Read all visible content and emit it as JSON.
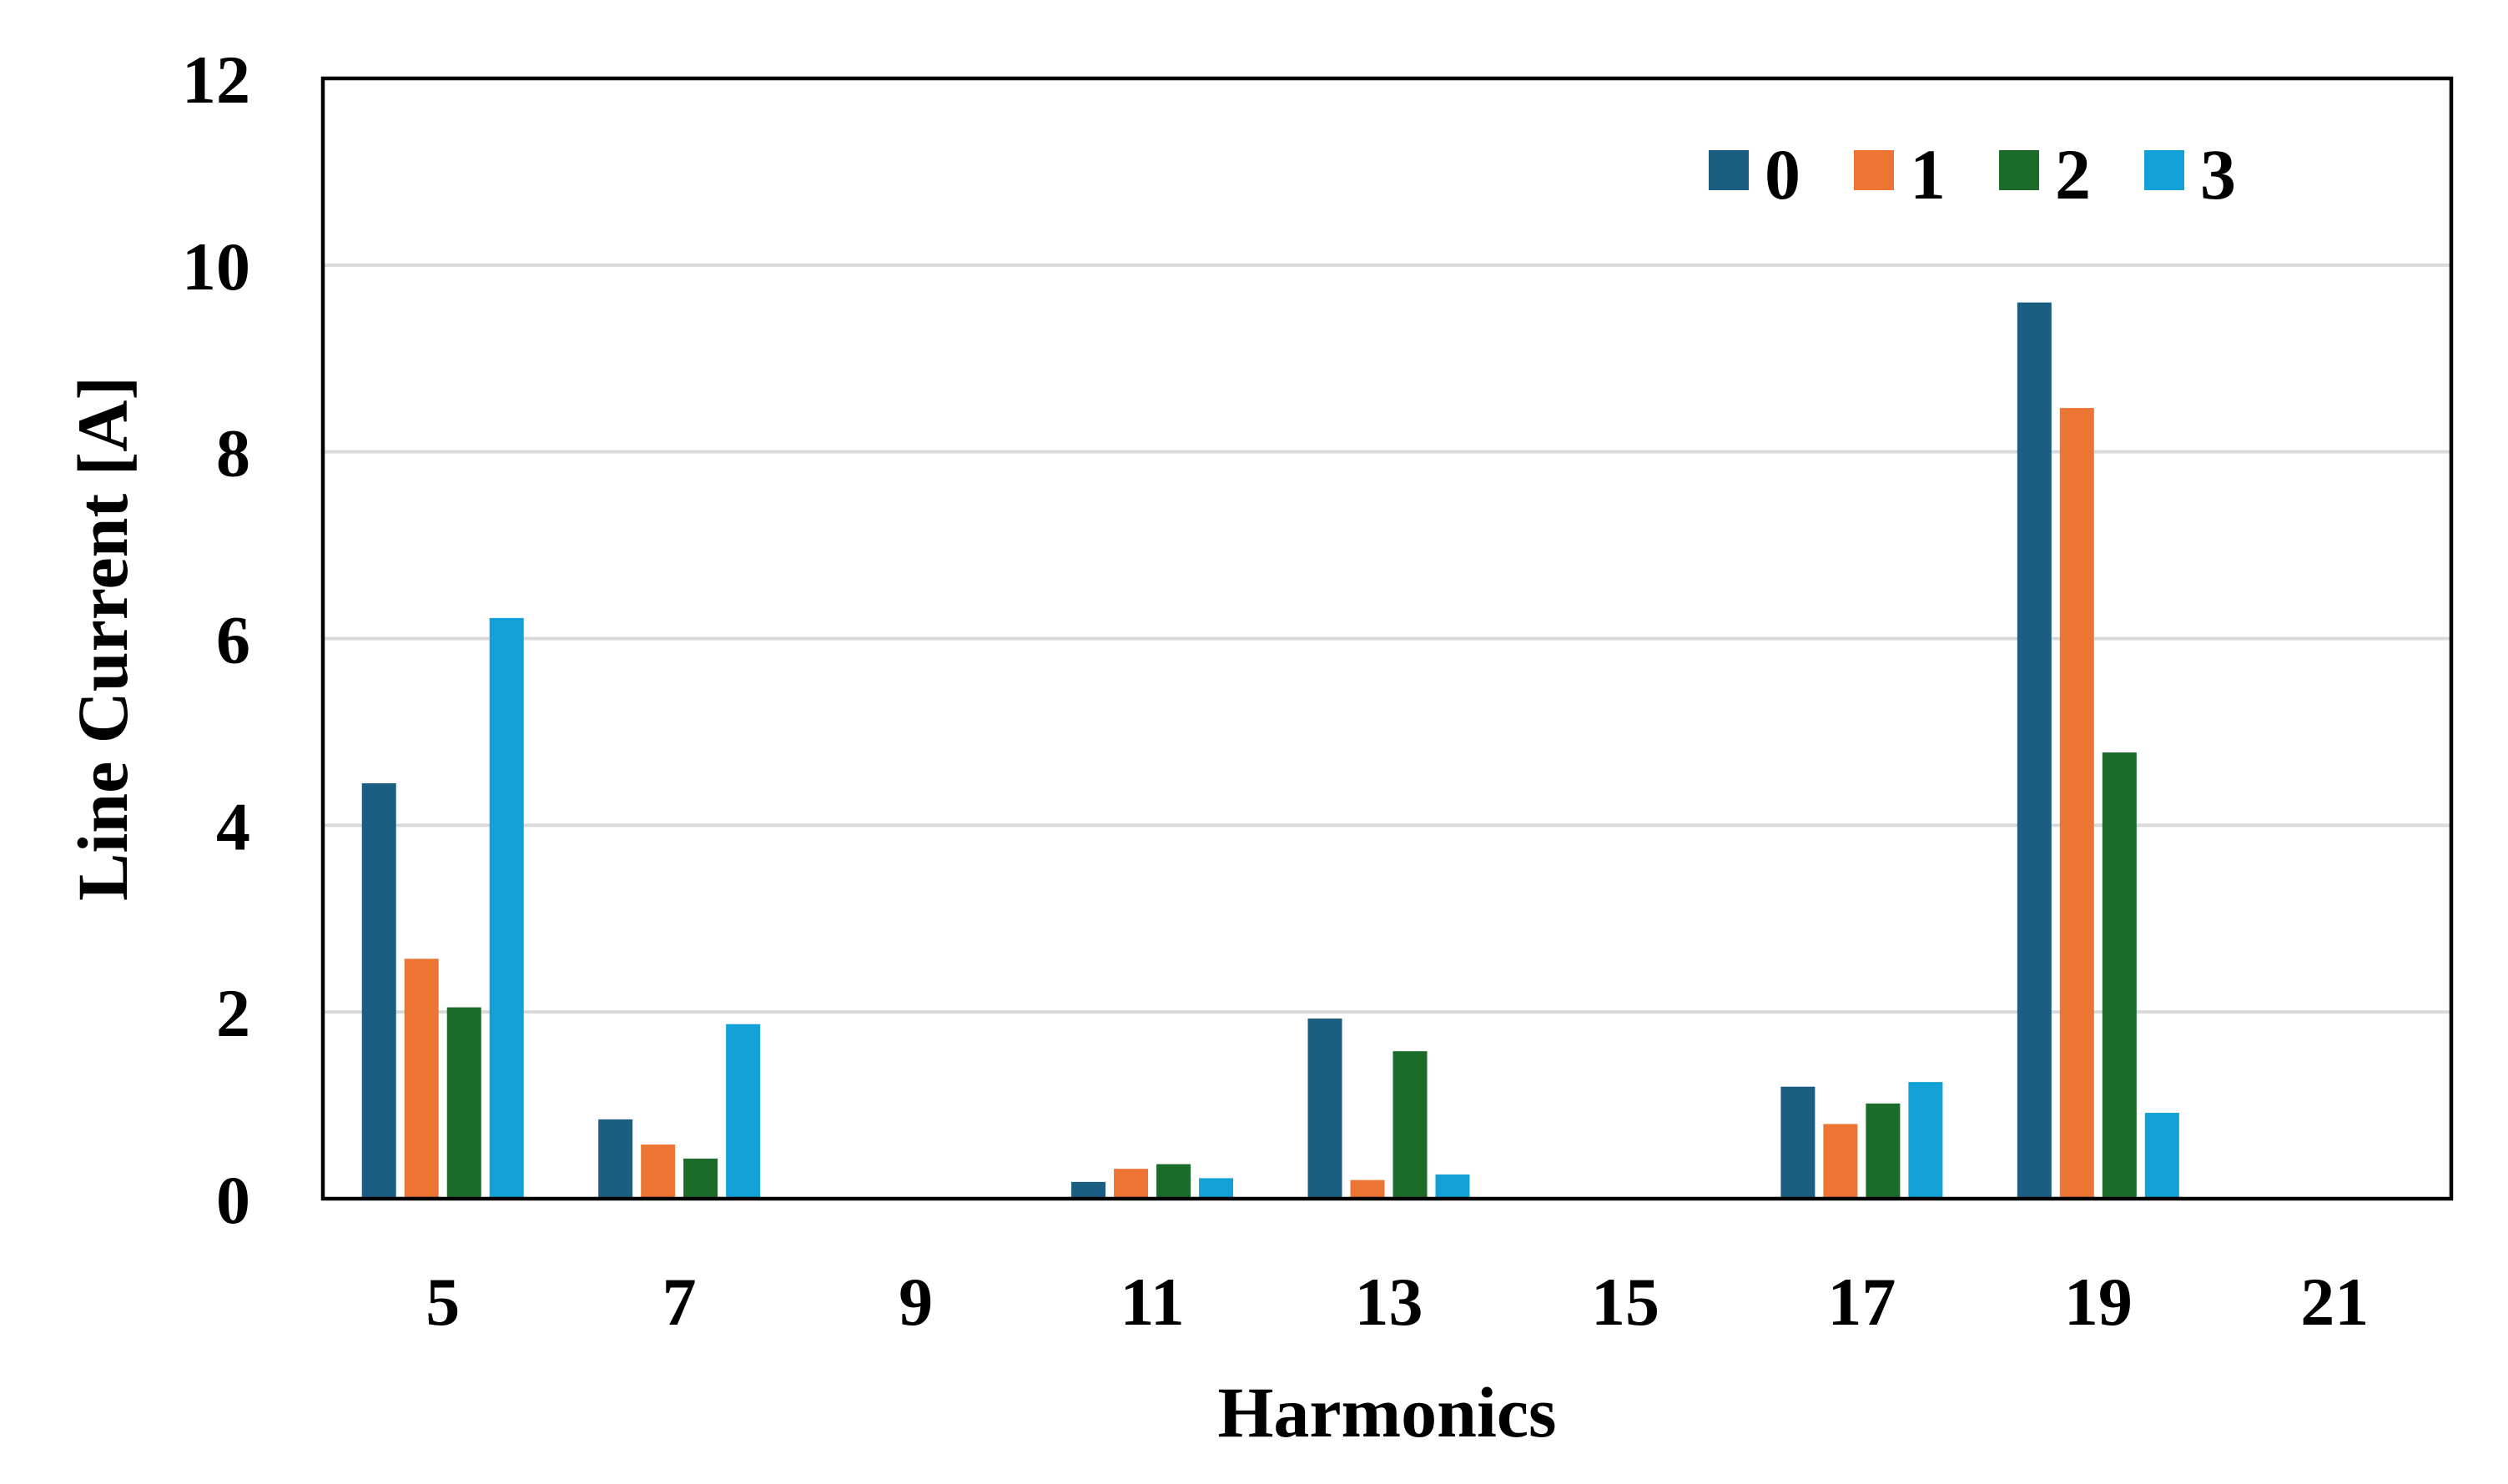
{
  "chart_data": {
    "type": "bar",
    "title": "",
    "xlabel": "Harmonics",
    "ylabel": "Line Current [A]",
    "categories": [
      "5",
      "7",
      "9",
      "11",
      "13",
      "15",
      "17",
      "19",
      "21"
    ],
    "ylim": [
      0,
      12
    ],
    "yticks": [
      "0",
      "2",
      "4",
      "6",
      "8",
      "10",
      "12"
    ],
    "grid": "horizontal",
    "legend_position": "top-right",
    "series": [
      {
        "name": "0",
        "color": "#1a5f82",
        "values": [
          4.45,
          0.85,
          0,
          0.18,
          1.93,
          0,
          1.2,
          9.6,
          0
        ]
      },
      {
        "name": "1",
        "color": "#ec7533",
        "values": [
          2.57,
          0.58,
          0,
          0.32,
          0.2,
          0,
          0.8,
          8.47,
          0
        ]
      },
      {
        "name": "2",
        "color": "#1b6b2a",
        "values": [
          2.05,
          0.43,
          0,
          0.37,
          1.58,
          0,
          1.02,
          4.78,
          0
        ]
      },
      {
        "name": "3",
        "color": "#12a0d7",
        "values": [
          6.22,
          1.87,
          0,
          0.22,
          0.26,
          0,
          1.25,
          0.92,
          0
        ]
      }
    ]
  }
}
